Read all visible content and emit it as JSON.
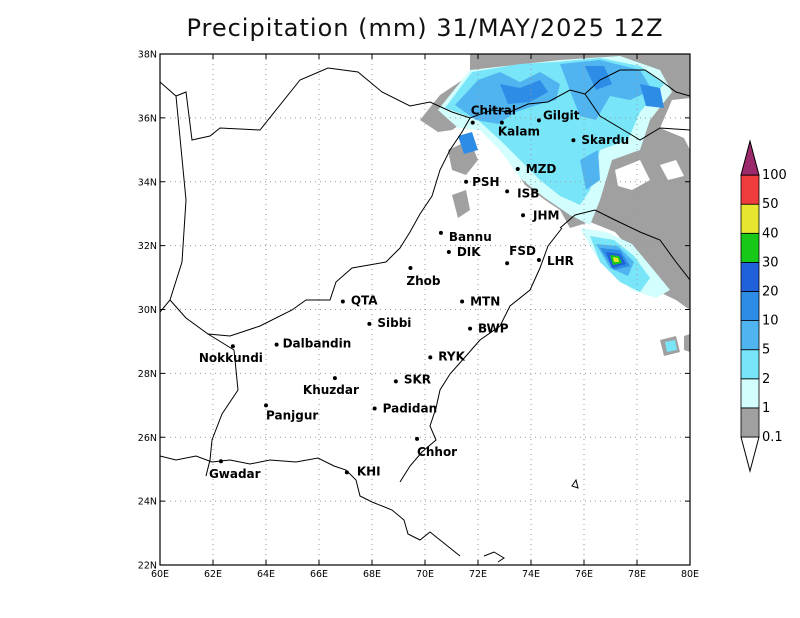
{
  "title": "Precipitation (mm) 31/MAY/2025 12Z",
  "map": {
    "lon_range": [
      60,
      80
    ],
    "lat_range": [
      22,
      38
    ],
    "grid": true,
    "lon_ticks": [
      {
        "value": 60,
        "label": "60E"
      },
      {
        "value": 62,
        "label": "62E"
      },
      {
        "value": 64,
        "label": "64E"
      },
      {
        "value": 66,
        "label": "66E"
      },
      {
        "value": 68,
        "label": "68E"
      },
      {
        "value": 70,
        "label": "70E"
      },
      {
        "value": 72,
        "label": "72E"
      },
      {
        "value": 74,
        "label": "74E"
      },
      {
        "value": 76,
        "label": "76E"
      },
      {
        "value": 78,
        "label": "78E"
      },
      {
        "value": 80,
        "label": "80E"
      }
    ],
    "lat_ticks": [
      {
        "value": 22,
        "label": "22N"
      },
      {
        "value": 24,
        "label": "24N"
      },
      {
        "value": 26,
        "label": "26N"
      },
      {
        "value": 28,
        "label": "28N"
      },
      {
        "value": 30,
        "label": "30N"
      },
      {
        "value": 32,
        "label": "32N"
      },
      {
        "value": 34,
        "label": "34N"
      },
      {
        "value": 36,
        "label": "36N"
      },
      {
        "value": 38,
        "label": "38N"
      }
    ],
    "cities": [
      {
        "name": "Chitral",
        "lon": 71.8,
        "lat": 35.85
      },
      {
        "name": "Gilgit",
        "lon": 74.3,
        "lat": 35.92
      },
      {
        "name": "Kalam",
        "lon": 72.9,
        "lat": 35.85
      },
      {
        "name": "Skardu",
        "lon": 75.6,
        "lat": 35.3
      },
      {
        "name": "MZD",
        "lon": 73.5,
        "lat": 34.4
      },
      {
        "name": "PSH",
        "lon": 71.55,
        "lat": 34.0
      },
      {
        "name": "ISB",
        "lon": 73.1,
        "lat": 33.7
      },
      {
        "name": "JHM",
        "lon": 73.7,
        "lat": 32.95
      },
      {
        "name": "Bannu",
        "lon": 70.6,
        "lat": 32.4
      },
      {
        "name": "DIK",
        "lon": 70.9,
        "lat": 31.8
      },
      {
        "name": "FSD",
        "lon": 73.1,
        "lat": 31.45
      },
      {
        "name": "LHR",
        "lon": 74.3,
        "lat": 31.55
      },
      {
        "name": "Zhob",
        "lon": 69.45,
        "lat": 31.3
      },
      {
        "name": "QTA",
        "lon": 66.9,
        "lat": 30.25
      },
      {
        "name": "MTN",
        "lon": 71.4,
        "lat": 30.25
      },
      {
        "name": "Sibbi",
        "lon": 67.9,
        "lat": 29.55
      },
      {
        "name": "BWP",
        "lon": 71.7,
        "lat": 29.4
      },
      {
        "name": "Nokkundi",
        "lon": 62.75,
        "lat": 28.85
      },
      {
        "name": "Dalbandin",
        "lon": 64.4,
        "lat": 28.9
      },
      {
        "name": "RYK",
        "lon": 70.2,
        "lat": 28.5
      },
      {
        "name": "Khuzdar",
        "lon": 66.6,
        "lat": 27.85
      },
      {
        "name": "SKR",
        "lon": 68.9,
        "lat": 27.75
      },
      {
        "name": "Panjgur",
        "lon": 64.0,
        "lat": 27.0
      },
      {
        "name": "Padidan",
        "lon": 68.1,
        "lat": 26.9
      },
      {
        "name": "Chhor",
        "lon": 69.7,
        "lat": 25.95
      },
      {
        "name": "KHI",
        "lon": 67.05,
        "lat": 24.9
      },
      {
        "name": "Gwadar",
        "lon": 62.3,
        "lat": 25.25
      }
    ]
  },
  "colorbar": {
    "levels": [
      "0.1",
      "1",
      "2",
      "5",
      "10",
      "20",
      "30",
      "40",
      "50",
      "100"
    ],
    "colors": [
      "#a0a0a0",
      "#d2fefe",
      "#78e6f8",
      "#50b4f0",
      "#2c8ce6",
      "#2060d8",
      "#18c818",
      "#e6e630",
      "#f03c3c",
      "#9a2a6c"
    ]
  }
}
